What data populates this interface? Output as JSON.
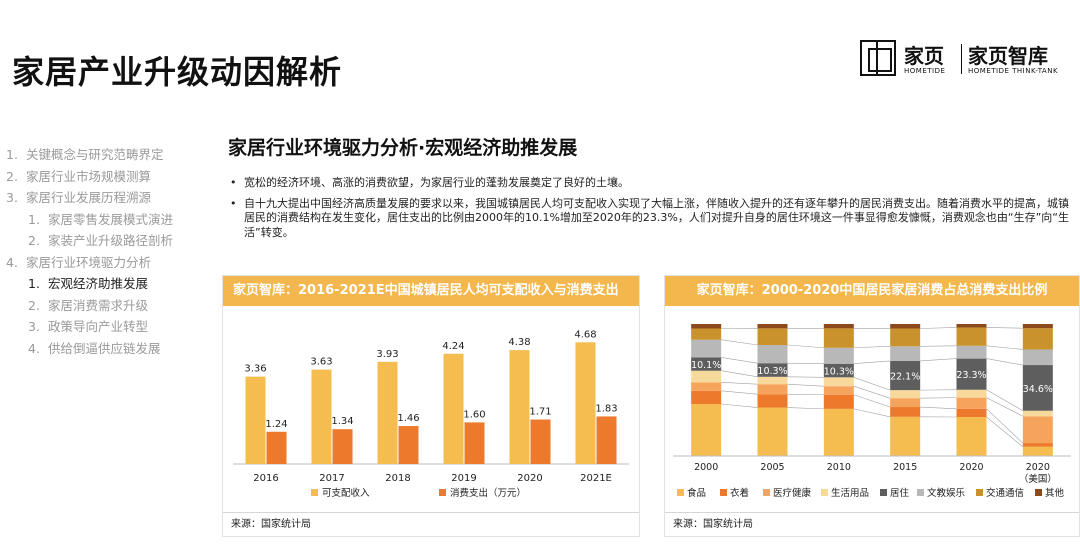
{
  "page": {
    "title": "家居产业升级动因解析",
    "section_title": "家居行业环境驱力分析·宏观经济助推发展",
    "bullets": [
      "宽松的经济环境、高涨的消费欲望，为家居行业的蓬勃发展奠定了良好的土壤。",
      "自十九大提出中国经济高质量发展的要求以来，我国城镇居民人均可支配收入实现了大幅上涨，伴随收入提升的还有逐年攀升的居民消费支出。随着消费水平的提高，城镇居民的消费结构在发生变化，居住支出的比例由2000年的10.1%增加至2020年的23.3%，人们对提升自身的居住环境这一件事显得愈发慷慨，消费观念也由“生存”向“生活”转变。"
    ]
  },
  "logo": {
    "brand_cn": "家页",
    "brand_en": "HOMETIDE",
    "think_cn": "家页智库",
    "think_en": "HOMETIDE THINK-TANK"
  },
  "nav": [
    {
      "num": "1.",
      "label": "关键概念与研究范畴界定",
      "level": 1,
      "active": false
    },
    {
      "num": "2.",
      "label": "家居行业市场规模测算",
      "level": 1,
      "active": false
    },
    {
      "num": "3.",
      "label": "家居行业发展历程溯源",
      "level": 1,
      "active": false
    },
    {
      "num": "1.",
      "label": "家居零售发展模式演进",
      "level": 2,
      "active": false
    },
    {
      "num": "2.",
      "label": "家装产业升级路径剖析",
      "level": 2,
      "active": false
    },
    {
      "num": "4.",
      "label": "家居行业环境驱力分析",
      "level": 1,
      "active": false
    },
    {
      "num": "1.",
      "label": "宏观经济助推发展",
      "level": 2,
      "active": true
    },
    {
      "num": "2.",
      "label": "家居消费需求升级",
      "level": 2,
      "active": false
    },
    {
      "num": "3.",
      "label": "政策导向产业转型",
      "level": 2,
      "active": false
    },
    {
      "num": "4.",
      "label": "供给倒逼供应链发展",
      "level": 2,
      "active": false
    }
  ],
  "colors": {
    "accent": "#f3b74d",
    "income": "#f5bc4f",
    "spend": "#ed7a2c"
  },
  "chart_data": [
    {
      "type": "bar",
      "title": "家页智库：2016-2021E中国城镇居民人均可支配收入与消费支出",
      "categories": [
        "2016",
        "2017",
        "2018",
        "2019",
        "2020",
        "2021E"
      ],
      "series": [
        {
          "name": "可支配收入",
          "color": "#f5bc4f",
          "values": [
            3.36,
            3.63,
            3.93,
            4.24,
            4.38,
            4.68
          ]
        },
        {
          "name": "消费支出（万元）",
          "color": "#ed7a2c",
          "values": [
            1.24,
            1.34,
            1.46,
            1.6,
            1.71,
            1.83
          ]
        }
      ],
      "ylim": [
        0,
        5.0
      ],
      "legend_position": "bottom",
      "source": "来源：国家统计局"
    },
    {
      "type": "bar",
      "stacked": true,
      "percent": true,
      "title": "家页智库：2000-2020中国居民家居消费占总消费支出比例",
      "categories": [
        "2000",
        "2005",
        "2010",
        "2015",
        "2020",
        "2020（美国）"
      ],
      "series": [
        {
          "name": "食品",
          "color": "#f5bc4f",
          "values": [
            39.4,
            36.7,
            35.7,
            29.7,
            29.2,
            7.0
          ]
        },
        {
          "name": "衣着",
          "color": "#ed7a2c",
          "values": [
            10.0,
            10.1,
            10.7,
            7.4,
            6.1,
            2.8
          ]
        },
        {
          "name": "医疗健康",
          "color": "#f6a35c",
          "values": [
            6.4,
            7.6,
            6.5,
            6.7,
            8.4,
            20.3
          ]
        },
        {
          "name": "生活用品",
          "color": "#f8d99c",
          "values": [
            8.8,
            5.6,
            6.7,
            6.1,
            5.9,
            4.2
          ]
        },
        {
          "name": "居住",
          "color": "#5e5e5e",
          "values": [
            10.1,
            10.3,
            10.3,
            22.1,
            23.3,
            34.6
          ]
        },
        {
          "name": "文教娱乐",
          "color": "#b8b8b8",
          "values": [
            13.4,
            13.8,
            12.1,
            11.1,
            9.6,
            11.8
          ]
        },
        {
          "name": "交通通信",
          "color": "#c9922c",
          "values": [
            8.5,
            12.6,
            14.7,
            13.5,
            13.7,
            16.1
          ]
        },
        {
          "name": "其他",
          "color": "#8a4a1c",
          "values": [
            3.4,
            3.3,
            3.3,
            3.4,
            2.6,
            3.2
          ]
        }
      ],
      "data_labels": {
        "series": "居住",
        "labels": [
          "10.1%",
          "10.3%",
          "10.3%",
          "22.1%",
          "23.3%",
          "34.6%"
        ]
      },
      "ylim": [
        0,
        100
      ],
      "legend_position": "bottom",
      "source": "来源：国家统计局"
    }
  ]
}
